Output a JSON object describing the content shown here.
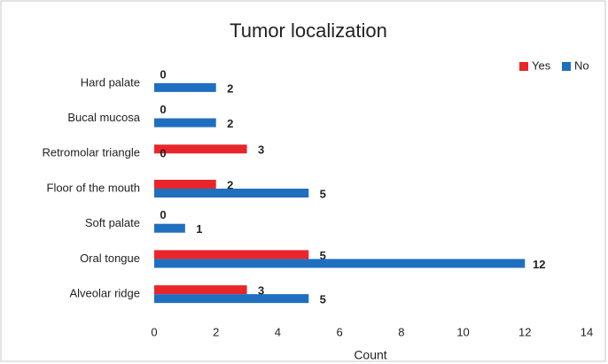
{
  "chart_data": {
    "type": "barh",
    "title": "Tumor localization",
    "xlabel": "Count",
    "categories": [
      "Hard palate",
      "Bucal mucosa",
      "Retromolar triangle",
      "Floor of the mouth",
      "Soft palate",
      "Oral tongue",
      "Alveolar ridge"
    ],
    "series": [
      {
        "name": "Yes",
        "color": "#e8262a",
        "values": [
          0,
          0,
          3,
          2,
          0,
          5,
          3
        ]
      },
      {
        "name": "No",
        "color": "#1f6fbf",
        "values": [
          2,
          2,
          0,
          5,
          1,
          12,
          5
        ]
      }
    ],
    "xlim": [
      0,
      14
    ],
    "xticks": [
      0,
      2,
      4,
      6,
      8,
      10,
      12,
      14
    ],
    "grid": false,
    "legend": "top-right"
  }
}
